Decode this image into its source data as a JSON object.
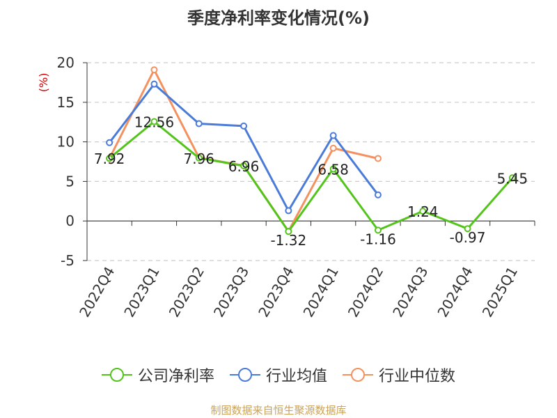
{
  "chart_data": {
    "type": "line",
    "title": "季度净利率变化情况(%)",
    "ylabel": "(%)",
    "ylim": [
      -5,
      20
    ],
    "yticks": [
      -5,
      0,
      5,
      10,
      15,
      20
    ],
    "grid": true,
    "legend_position": "bottom",
    "categories": [
      "2022Q4",
      "2023Q1",
      "2023Q2",
      "2023Q3",
      "2023Q4",
      "2024Q1",
      "2024Q2",
      "2024Q3",
      "2024Q4",
      "2025Q1"
    ],
    "series": [
      {
        "name": "公司净利率",
        "color": "#52c41a",
        "values": [
          7.92,
          12.56,
          7.96,
          6.96,
          -1.32,
          6.58,
          -1.16,
          1.24,
          -0.97,
          5.45
        ],
        "labels": [
          "7.92",
          "12.56",
          "7.96",
          "6.96",
          "-1.32",
          "6.58",
          "-1.16",
          "1.24",
          "-0.97",
          "5.45"
        ]
      },
      {
        "name": "行业均值",
        "color": "#4a7bd9",
        "values": [
          9.9,
          17.3,
          12.3,
          12.0,
          1.3,
          10.8,
          3.3,
          null,
          null,
          null
        ]
      },
      {
        "name": "行业中位数",
        "color": "#f4915e",
        "values": [
          7.9,
          19.1,
          8.0,
          7.0,
          -1.3,
          9.2,
          7.9,
          null,
          null,
          null
        ]
      }
    ]
  },
  "legend": [
    {
      "label": "公司净利率",
      "color": "#52c41a"
    },
    {
      "label": "行业均值",
      "color": "#4a7bd9"
    },
    {
      "label": "行业中位数",
      "color": "#f4915e"
    }
  ],
  "source": "制图数据来自恒生聚源数据库"
}
